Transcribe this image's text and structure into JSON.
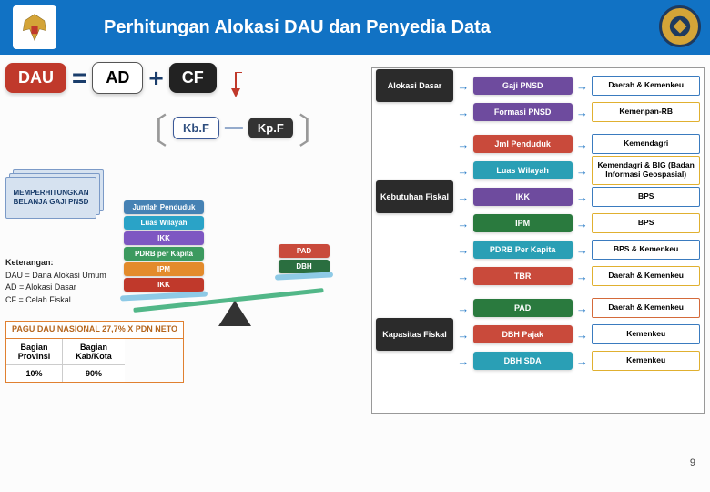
{
  "header": {
    "title": "Perhitungan Alokasi DAU dan Penyedia Data"
  },
  "formula": {
    "dau": "DAU",
    "eq": "=",
    "ad": "AD",
    "plus": "+",
    "cf": "CF",
    "kbf": "Kb.F",
    "minus": "—",
    "kpf": "Kp.F"
  },
  "stack_label": "MEMPERHITUNGKAN BELANJA GAJI PNSD",
  "balance": {
    "left_items": [
      {
        "label": "Jumlah Penduduk",
        "color": "#4682b4"
      },
      {
        "label": "Luas Wilayah",
        "color": "#2aa3c7"
      },
      {
        "label": "IKK",
        "color": "#7e57c2"
      },
      {
        "label": "PDRB per Kapita",
        "color": "#3c9a5f"
      },
      {
        "label": "IPM",
        "color": "#e38b2c"
      },
      {
        "label": "IKK",
        "color": "#c0392b"
      }
    ],
    "right_items": [
      {
        "label": "PAD",
        "color": "#c94a3b"
      },
      {
        "label": "DBH",
        "color": "#2a6e3f"
      }
    ]
  },
  "keterangan": {
    "title": "Keterangan:",
    "lines": [
      "DAU = Dana Alokasi Umum",
      "AD   = Alokasi Dasar",
      "CF   = Celah Fiskal"
    ]
  },
  "pagu": {
    "header": "PAGU DAU NASIONAL 27,7% X PDN NETO",
    "col1_h": "Bagian Provinsi",
    "col2_h": "Bagian Kab/Kota",
    "col1_v": "10%",
    "col2_v": "90%"
  },
  "categories": [
    {
      "name": "Alokasi Dasar",
      "items": [
        {
          "label": "Gaji PNSD",
          "color": "#6e4b9e",
          "provider": "Daerah & Kemenkeu",
          "pborder": "#3a7bbf"
        },
        {
          "label": "Formasi PNSD",
          "color": "#6e4b9e",
          "provider": "Kemenpan-RB",
          "pborder": "#e0b030"
        }
      ]
    },
    {
      "name": "Kebutuhan Fiskal",
      "items": [
        {
          "label": "Jml Penduduk",
          "color": "#c94a3b",
          "provider": "Kemendagri",
          "pborder": "#3a7bbf"
        },
        {
          "label": "Luas Wilayah",
          "color": "#2a9fb5",
          "provider": "Kemendagri & BIG (Badan Informasi Geospasial)",
          "pborder": "#e0b030"
        },
        {
          "label": "IKK",
          "color": "#6e4b9e",
          "provider": "BPS",
          "pborder": "#3a7bbf"
        },
        {
          "label": "IPM",
          "color": "#2a7a3e",
          "provider": "BPS",
          "pborder": "#e0b030"
        },
        {
          "label": "PDRB Per Kapita",
          "color": "#2a9fb5",
          "provider": "BPS & Kemenkeu",
          "pborder": "#3a7bbf"
        },
        {
          "label": "TBR",
          "color": "#c94a3b",
          "provider": "Daerah & Kemenkeu",
          "pborder": "#e0b030"
        }
      ]
    },
    {
      "name": "Kapasitas Fiskal",
      "items": [
        {
          "label": "PAD",
          "color": "#2a7a3e",
          "provider": "Daerah & Kemenkeu",
          "pborder": "#d46a3a"
        },
        {
          "label": "DBH Pajak",
          "color": "#c94a3b",
          "provider": "Kemenkeu",
          "pborder": "#3a7bbf"
        },
        {
          "label": "DBH SDA",
          "color": "#2a9fb5",
          "provider": "Kemenkeu",
          "pborder": "#e0b030"
        }
      ]
    }
  ],
  "page_number": "9"
}
